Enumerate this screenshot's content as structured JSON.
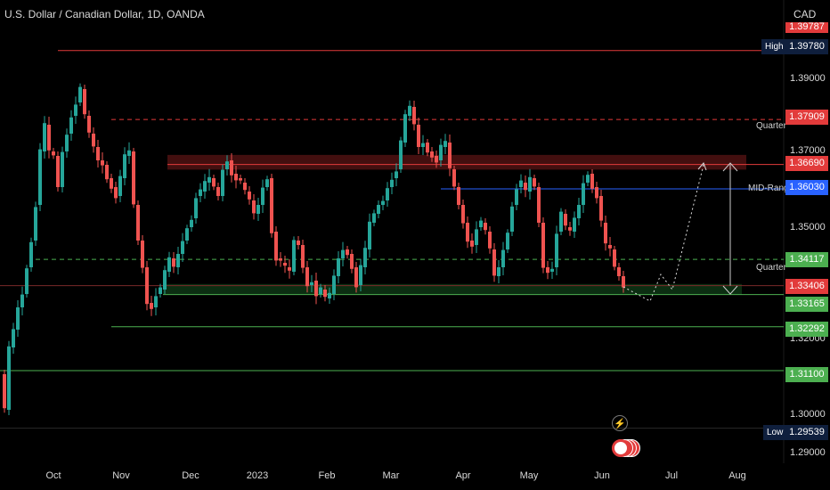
{
  "header": {
    "symbol_title": "U.S. Dollar / Canadian Dollar, 1D, OANDA",
    "currency": "CAD"
  },
  "price_axis": {
    "ticks": [
      "1.39000",
      "1.37000",
      "1.35000",
      "1.32000",
      "1.30000",
      "1.29000"
    ]
  },
  "time_axis": {
    "ticks": [
      "Oct",
      "Nov",
      "Dec",
      "2023",
      "Feb",
      "Mar",
      "Apr",
      "May",
      "Jun",
      "Jul",
      "Aug"
    ]
  },
  "levels": [
    {
      "label": "High",
      "value": "1.39780",
      "color": "#e23b3b"
    },
    {
      "label": "Quarter",
      "value": "1.37909",
      "color": "#e23b3b"
    },
    {
      "label": "",
      "value": "1.36690",
      "color": "#e23b3b"
    },
    {
      "label": "MID-Range",
      "value": "1.36030",
      "color": "#2962ff"
    },
    {
      "label": "Quarter",
      "value": "1.34117",
      "color": "#4caf50"
    },
    {
      "label": "",
      "value": "1.33406",
      "color": "#e23b3b"
    },
    {
      "label": "",
      "value": "1.33165",
      "color": "#4caf50"
    },
    {
      "label": "",
      "value": "1.32292",
      "color": "#4caf50"
    },
    {
      "label": "",
      "value": "1.31100",
      "color": "#4caf50"
    },
    {
      "label": "Low",
      "value": "1.29539",
      "color": "#ffffff"
    }
  ],
  "top_partial_value": "1.39787",
  "icons": {
    "flash": "lightning-icon",
    "flag": "canada-flag-icon"
  },
  "colors": {
    "up": "#26a69a",
    "down": "#ef5350",
    "background": "#000000"
  }
}
